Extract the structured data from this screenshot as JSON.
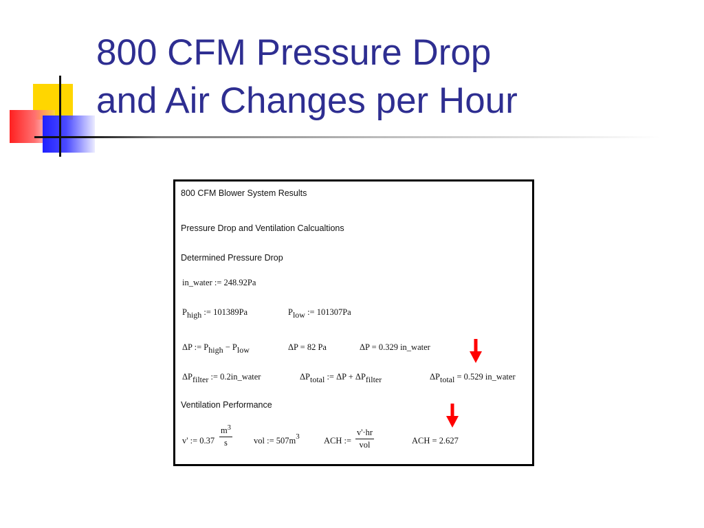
{
  "title": {
    "line1": "800 CFM Pressure Drop",
    "line2": "and Air Changes per Hour"
  },
  "panel": {
    "heading": "800 CFM Blower System Results",
    "section1": "Pressure Drop and Ventilation Calcualtions",
    "section2": "Determined Pressure Drop",
    "section3": "Ventilation Performance",
    "in_water_def": "in_water := 248.92Pa",
    "p_high": {
      "sym": "P",
      "sub": "high",
      "rest": " := 101389Pa"
    },
    "p_low": {
      "sym": "P",
      "sub": "low",
      "rest": " := 101307Pa"
    },
    "dp_def": {
      "a": "ΔP := P",
      "sub1": "high",
      "b": " − P",
      "sub2": "low"
    },
    "dp_pa": "ΔP = 82 Pa",
    "dp_inwater": "ΔP = 0.329 in_water",
    "dp_filter": {
      "a": "ΔP",
      "sub": "filter",
      "rest": " := 0.2in_water"
    },
    "dp_total_def": {
      "a": "ΔP",
      "sub1": "total",
      "b": " := ΔP + ΔP",
      "sub2": "filter"
    },
    "dp_total_val": {
      "a": "ΔP",
      "sub": "total",
      "rest": " = 0.529 in_water"
    },
    "v_def": {
      "lhs": "v' := 0.37",
      "num": "m",
      "num_sup": "3",
      "den": "s"
    },
    "vol_def": {
      "text": "vol := 507m",
      "sup": "3"
    },
    "ach_def": {
      "lhs": "ACH :=",
      "num": "v'·hr",
      "den": "vol"
    },
    "ach_val": "ACH = 2.627"
  },
  "colors": {
    "title": "#2e2e91",
    "arrow": "#ff0000",
    "accent_yellow": "#ffd600",
    "accent_red": "#ff2020",
    "accent_blue": "#2020ff"
  },
  "icons": [
    "down-arrow-icon",
    "down-arrow-icon"
  ]
}
